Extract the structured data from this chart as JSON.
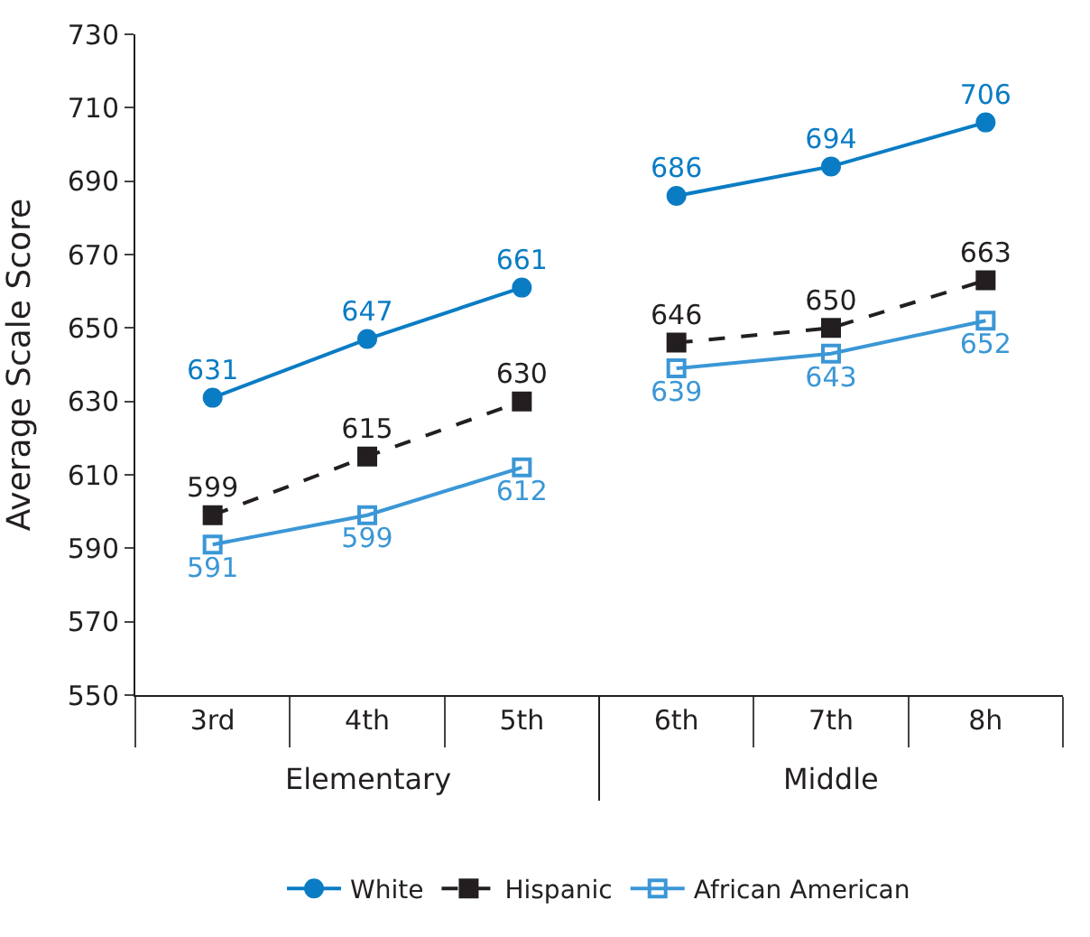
{
  "chart_data": {
    "type": "line",
    "ylabel": "Average Scale Score",
    "categories": [
      "3rd",
      "4th",
      "5th",
      "6th",
      "7th",
      "8h"
    ],
    "series": [
      {
        "name": "White",
        "color": "#0a7cc4",
        "values": [
          631,
          647,
          661,
          686,
          694,
          706
        ],
        "marker": "circle",
        "line_style": "solid"
      },
      {
        "name": "Hispanic",
        "color": "#231f20",
        "values": [
          599,
          615,
          630,
          646,
          650,
          663
        ],
        "marker": "square",
        "line_style": "dashed"
      },
      {
        "name": "African American",
        "color": "#3b97d6",
        "values": [
          591,
          599,
          612,
          639,
          643,
          652
        ],
        "marker": "square-open",
        "line_style": "solid"
      }
    ],
    "annotations": [
      "Elementary",
      "Middle"
    ],
    "ylim": [
      550,
      730
    ],
    "yticks": [
      550,
      570,
      590,
      610,
      630,
      650,
      670,
      690,
      710,
      730
    ],
    "legend": "bottom",
    "data_labels": true
  }
}
